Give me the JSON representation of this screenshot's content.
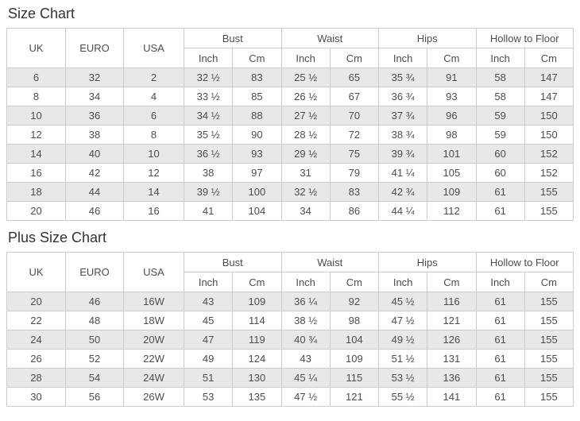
{
  "colors": {
    "border": "#cccccc",
    "alt_row_bg": "#e8e8e8",
    "header_bg": "#ffffff",
    "cell_text": "#4d4d4d",
    "title_text": "#333333",
    "page_bg": "#ffffff"
  },
  "tables": {
    "size_chart": {
      "title": "Size Chart",
      "single_columns": [
        "UK",
        "EURO",
        "USA"
      ],
      "measure_columns": [
        "Bust",
        "Waist",
        "Hips",
        "Hollow to Floor"
      ],
      "unit_labels": [
        "Inch",
        "Cm"
      ],
      "rows": [
        [
          "6",
          "32",
          "2",
          "32 ½",
          "83",
          "25 ½",
          "65",
          "35 ¾",
          "91",
          "58",
          "147"
        ],
        [
          "8",
          "34",
          "4",
          "33 ½",
          "85",
          "26 ½",
          "67",
          "36 ¾",
          "93",
          "58",
          "147"
        ],
        [
          "10",
          "36",
          "6",
          "34 ½",
          "88",
          "27 ½",
          "70",
          "37 ¾",
          "96",
          "59",
          "150"
        ],
        [
          "12",
          "38",
          "8",
          "35 ½",
          "90",
          "28 ½",
          "72",
          "38 ¾",
          "98",
          "59",
          "150"
        ],
        [
          "14",
          "40",
          "10",
          "36 ½",
          "93",
          "29 ½",
          "75",
          "39 ¾",
          "101",
          "60",
          "152"
        ],
        [
          "16",
          "42",
          "12",
          "38",
          "97",
          "31",
          "79",
          "41 ¼",
          "105",
          "60",
          "152"
        ],
        [
          "18",
          "44",
          "14",
          "39 ½",
          "100",
          "32 ½",
          "83",
          "42 ¾",
          "109",
          "61",
          "155"
        ],
        [
          "20",
          "46",
          "16",
          "41",
          "104",
          "34",
          "86",
          "44 ¼",
          "112",
          "61",
          "155"
        ]
      ]
    },
    "plus_size_chart": {
      "title": "Plus Size Chart",
      "single_columns": [
        "UK",
        "EURO",
        "USA"
      ],
      "measure_columns": [
        "Bust",
        "Waist",
        "Hips",
        "Hollow to Floor"
      ],
      "unit_labels": [
        "Inch",
        "Cm"
      ],
      "rows": [
        [
          "20",
          "46",
          "16W",
          "43",
          "109",
          "36 ¼",
          "92",
          "45 ½",
          "116",
          "61",
          "155"
        ],
        [
          "22",
          "48",
          "18W",
          "45",
          "114",
          "38 ½",
          "98",
          "47 ½",
          "121",
          "61",
          "155"
        ],
        [
          "24",
          "50",
          "20W",
          "47",
          "119",
          "40 ¾",
          "104",
          "49 ½",
          "126",
          "61",
          "155"
        ],
        [
          "26",
          "52",
          "22W",
          "49",
          "124",
          "43",
          "109",
          "51 ½",
          "131",
          "61",
          "155"
        ],
        [
          "28",
          "54",
          "24W",
          "51",
          "130",
          "45 ¼",
          "115",
          "53 ½",
          "136",
          "61",
          "155"
        ],
        [
          "30",
          "56",
          "26W",
          "53",
          "135",
          "47 ½",
          "121",
          "55 ½",
          "141",
          "61",
          "155"
        ]
      ]
    }
  }
}
